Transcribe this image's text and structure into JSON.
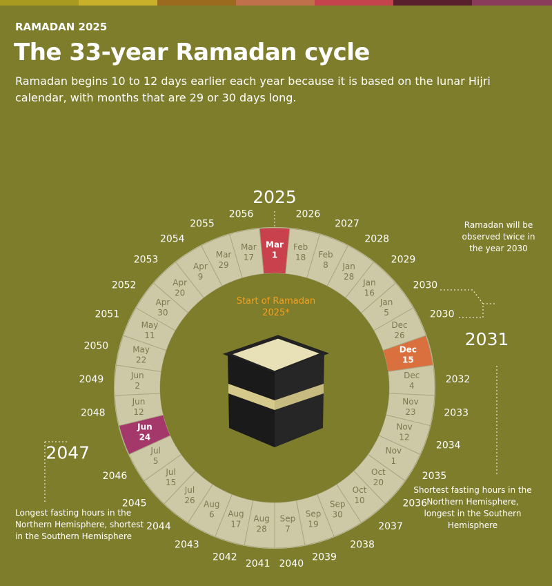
{
  "header": {
    "kicker": "RAMADAN 2025",
    "title": "The 33-year Ramadan cycle",
    "subtitle": "Ramadan begins 10 to 12 days earlier each year because it is based on the lunar Hijri calendar, with months that are 29 or 30 days long."
  },
  "center_label": "Start of Ramadan 2025*",
  "segments": [
    {
      "year": "2025",
      "month": "Mar",
      "day": "1",
      "color": "#c8414c"
    },
    {
      "year": "2026",
      "month": "Feb",
      "day": "18"
    },
    {
      "year": "2027",
      "month": "Feb",
      "day": "8"
    },
    {
      "year": "2028",
      "month": "Jan",
      "day": "28"
    },
    {
      "year": "2029",
      "month": "Jan",
      "day": "16"
    },
    {
      "year": "2030",
      "month": "Jan",
      "day": "5"
    },
    {
      "year": "2030",
      "month": "Dec",
      "day": "26"
    },
    {
      "year": "2031",
      "month": "Dec",
      "day": "15",
      "color": "#d9703e"
    },
    {
      "year": "2032",
      "month": "Dec",
      "day": "4"
    },
    {
      "year": "2033",
      "month": "Nov",
      "day": "23"
    },
    {
      "year": "2034",
      "month": "Nov",
      "day": "12"
    },
    {
      "year": "2035",
      "month": "Nov",
      "day": "1"
    },
    {
      "year": "2036",
      "month": "Oct",
      "day": "20"
    },
    {
      "year": "2037",
      "month": "Oct",
      "day": "10"
    },
    {
      "year": "2038",
      "month": "Sep",
      "day": "30"
    },
    {
      "year": "2039",
      "month": "Sep",
      "day": "19"
    },
    {
      "year": "2040",
      "month": "Sep",
      "day": "7"
    },
    {
      "year": "2041",
      "month": "Aug",
      "day": "28"
    },
    {
      "year": "2042",
      "month": "Aug",
      "day": "17"
    },
    {
      "year": "2043",
      "month": "Aug",
      "day": "6"
    },
    {
      "year": "2044",
      "month": "Jul",
      "day": "26"
    },
    {
      "year": "2045",
      "month": "Jul",
      "day": "15"
    },
    {
      "year": "2046",
      "month": "Jul",
      "day": "5"
    },
    {
      "year": "2047",
      "month": "Jun",
      "day": "24",
      "color": "#a4386a"
    },
    {
      "year": "2048",
      "month": "Jun",
      "day": "12"
    },
    {
      "year": "2049",
      "month": "Jun",
      "day": "2"
    },
    {
      "year": "2050",
      "month": "May",
      "day": "22"
    },
    {
      "year": "2051",
      "month": "May",
      "day": "11"
    },
    {
      "year": "2052",
      "month": "Apr",
      "day": "30"
    },
    {
      "year": "2053",
      "month": "Apr",
      "day": "20"
    },
    {
      "year": "2054",
      "month": "Apr",
      "day": "9"
    },
    {
      "year": "2055",
      "month": "Mar",
      "day": "29"
    },
    {
      "year": "2056",
      "month": "Mar",
      "day": "17"
    }
  ],
  "annotations": {
    "twice": "Ramadan will be observed twice in the year 2030",
    "shortest": "Shortest fasting hours in the Northern Hemisphere, longest in the Southern Hemisphere",
    "longest": "Longest fasting hours in the Northern Hemisphere, shortest in the Southern Hemisphere"
  }
}
